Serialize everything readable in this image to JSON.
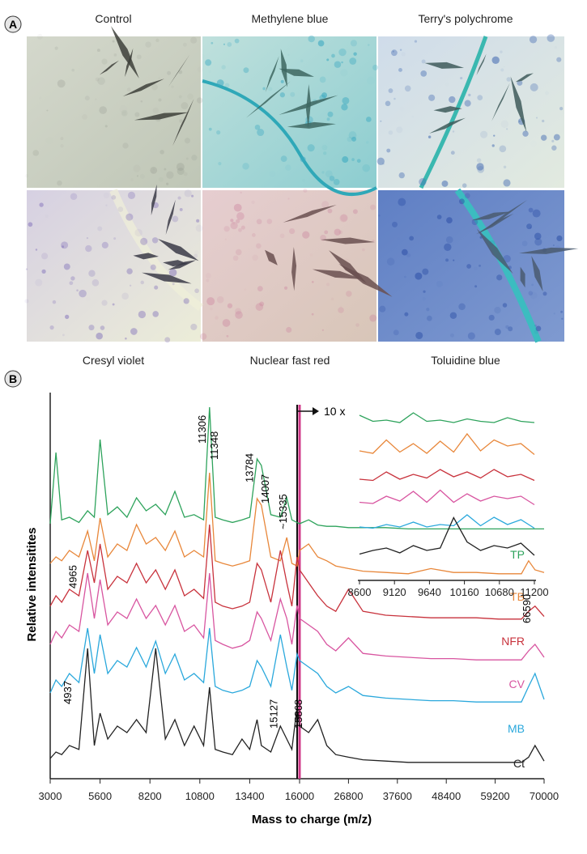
{
  "panel_a": {
    "label": "A",
    "top_labels": [
      "Control",
      "Methylene blue",
      "Terry's polychrome"
    ],
    "bottom_labels": [
      "Cresyl violet",
      "Nuclear fast red",
      "Toluidine blue"
    ]
  },
  "chart_data": {
    "type": "line",
    "panel_label": "B",
    "x_label": "Mass to charge (m/z)",
    "y_label": "Relative intensitites",
    "xaxis": [
      {
        "xlim": [
          3000,
          16000
        ],
        "xticks": [
          3000,
          5600,
          8200,
          10800,
          13400,
          16000
        ]
      },
      {
        "xlim": [
          16000,
          70000
        ],
        "xticks": [
          26800,
          37600,
          48400,
          59200,
          70000
        ]
      }
    ],
    "x": [
      3000,
      3300,
      3600,
      4000,
      4500,
      4950,
      5300,
      5600,
      6000,
      6500,
      7000,
      7500,
      8000,
      8500,
      9000,
      9500,
      10000,
      10500,
      11000,
      11306,
      11600,
      12000,
      12500,
      13000,
      13400,
      13784,
      14007,
      14500,
      15000,
      15335,
      15600,
      15868,
      16000,
      18000,
      20000,
      22000,
      24000,
      26800,
      30000,
      35000,
      40000,
      45000,
      50000,
      55000,
      60000,
      65000,
      66590,
      68000,
      70000
    ],
    "series": [
      {
        "name": "TP",
        "color": "#2ea35c",
        "values": [
          5,
          60,
          8,
          10,
          6,
          15,
          10,
          70,
          12,
          18,
          10,
          25,
          15,
          20,
          12,
          30,
          10,
          12,
          8,
          95,
          10,
          8,
          6,
          8,
          10,
          55,
          50,
          12,
          10,
          25,
          8,
          6,
          5,
          8,
          4,
          3,
          3,
          2,
          2,
          2,
          1,
          1,
          1,
          1,
          1,
          1,
          1,
          1,
          1
        ]
      },
      {
        "name": "TB",
        "color": "#e8873a",
        "values": [
          10,
          15,
          12,
          20,
          15,
          35,
          12,
          45,
          15,
          25,
          20,
          40,
          25,
          30,
          20,
          35,
          15,
          20,
          15,
          80,
          12,
          10,
          8,
          10,
          12,
          60,
          55,
          15,
          12,
          30,
          10,
          8,
          20,
          25,
          15,
          12,
          8,
          6,
          4,
          3,
          2,
          6,
          3,
          3,
          2,
          2,
          12,
          5,
          3
        ]
      },
      {
        "name": "NFR",
        "color": "#c8323c",
        "values": [
          12,
          20,
          15,
          25,
          20,
          55,
          30,
          60,
          25,
          35,
          30,
          45,
          30,
          40,
          25,
          40,
          20,
          25,
          18,
          75,
          15,
          12,
          10,
          12,
          15,
          45,
          40,
          15,
          55,
          30,
          12,
          50,
          40,
          30,
          20,
          12,
          8,
          25,
          8,
          5,
          4,
          3,
          3,
          3,
          2,
          2,
          8,
          12,
          4
        ]
      },
      {
        "name": "CV",
        "color": "#d855a0",
        "values": [
          15,
          25,
          20,
          30,
          25,
          70,
          35,
          65,
          30,
          40,
          35,
          50,
          35,
          45,
          30,
          45,
          25,
          30,
          20,
          70,
          18,
          15,
          12,
          14,
          18,
          40,
          35,
          18,
          50,
          35,
          15,
          45,
          35,
          30,
          25,
          15,
          10,
          20,
          8,
          6,
          5,
          4,
          4,
          3,
          3,
          3,
          10,
          15,
          5
        ]
      },
      {
        "name": "MB",
        "color": "#2aa8dc",
        "values": [
          10,
          20,
          15,
          25,
          18,
          60,
          25,
          55,
          25,
          35,
          30,
          45,
          30,
          50,
          25,
          40,
          20,
          25,
          18,
          60,
          15,
          12,
          10,
          12,
          15,
          35,
          30,
          15,
          55,
          30,
          12,
          40,
          35,
          30,
          25,
          15,
          10,
          15,
          8,
          6,
          5,
          4,
          4,
          3,
          3,
          3,
          15,
          25,
          5
        ]
      },
      {
        "name": "Ct",
        "color": "#222222",
        "values": [
          5,
          10,
          8,
          15,
          12,
          90,
          15,
          40,
          20,
          30,
          25,
          35,
          25,
          90,
          20,
          35,
          15,
          30,
          15,
          60,
          12,
          10,
          8,
          20,
          12,
          35,
          15,
          10,
          30,
          20,
          12,
          45,
          30,
          25,
          35,
          15,
          8,
          6,
          4,
          3,
          2,
          2,
          2,
          2,
          2,
          2,
          6,
          15,
          3
        ]
      }
    ],
    "annotations": [
      {
        "label": "11306",
        "x": 11306
      },
      {
        "label": "11348",
        "x": 11348
      },
      {
        "label": "13784",
        "x": 13784
      },
      {
        "label": "14007",
        "x": 14007
      },
      {
        "label": "~15335",
        "x": 15335
      },
      {
        "label": "4965",
        "x": 4965
      },
      {
        "label": "4937",
        "x": 4937
      },
      {
        "label": "15127",
        "x": 15127
      },
      {
        "label": "15868",
        "x": 15868
      },
      {
        "label": "66590",
        "x": 66590
      }
    ],
    "zoom_label": "10 x",
    "inset": {
      "xlim": [
        8600,
        11200
      ],
      "xticks": [
        8600,
        9120,
        9640,
        10160,
        10680,
        11200
      ],
      "x": [
        8600,
        8800,
        9000,
        9200,
        9400,
        9600,
        9800,
        10000,
        10200,
        10400,
        10600,
        10800,
        11000,
        11200
      ],
      "series": [
        {
          "values": [
            8,
            3,
            4,
            2,
            10,
            3,
            4,
            2,
            5,
            3,
            2,
            6,
            3,
            2
          ]
        },
        {
          "values": [
            6,
            4,
            15,
            5,
            12,
            4,
            14,
            5,
            20,
            6,
            15,
            10,
            12,
            3
          ]
        },
        {
          "values": [
            4,
            3,
            10,
            4,
            8,
            5,
            12,
            6,
            10,
            5,
            12,
            6,
            8,
            3
          ]
        },
        {
          "values": [
            5,
            4,
            10,
            6,
            14,
            5,
            15,
            5,
            12,
            6,
            10,
            8,
            10,
            3
          ]
        },
        {
          "values": [
            4,
            3,
            6,
            4,
            8,
            4,
            6,
            5,
            14,
            5,
            12,
            6,
            10,
            3
          ]
        },
        {
          "values": [
            5,
            8,
            10,
            6,
            12,
            8,
            10,
            35,
            15,
            8,
            12,
            10,
            14,
            4
          ]
        }
      ]
    }
  }
}
